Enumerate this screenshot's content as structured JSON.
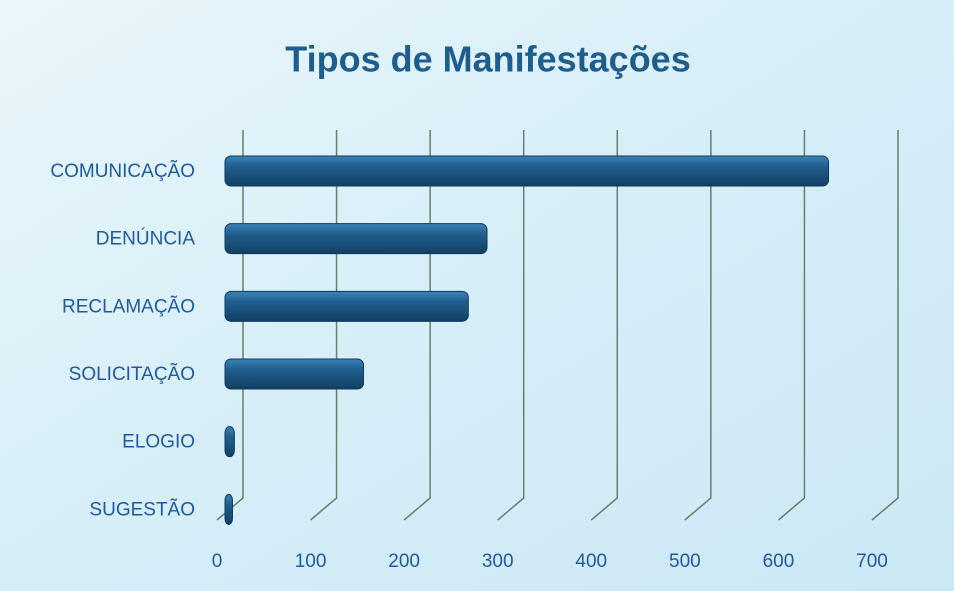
{
  "chart_data": {
    "type": "bar",
    "orientation": "horizontal",
    "title": "Tipos de Manifestações",
    "categories": [
      "COMUNICAÇÃO",
      "DENÚNCIA",
      "RECLAMAÇÃO",
      "SOLICITAÇÃO",
      "ELOGIO",
      "SUGESTÃO"
    ],
    "values": [
      645,
      280,
      260,
      148,
      10,
      8
    ],
    "color": "#1f5f8f",
    "xlim": [
      0,
      700
    ],
    "xticks": [
      0,
      100,
      200,
      300,
      400,
      500,
      600,
      700
    ],
    "grid": true
  }
}
